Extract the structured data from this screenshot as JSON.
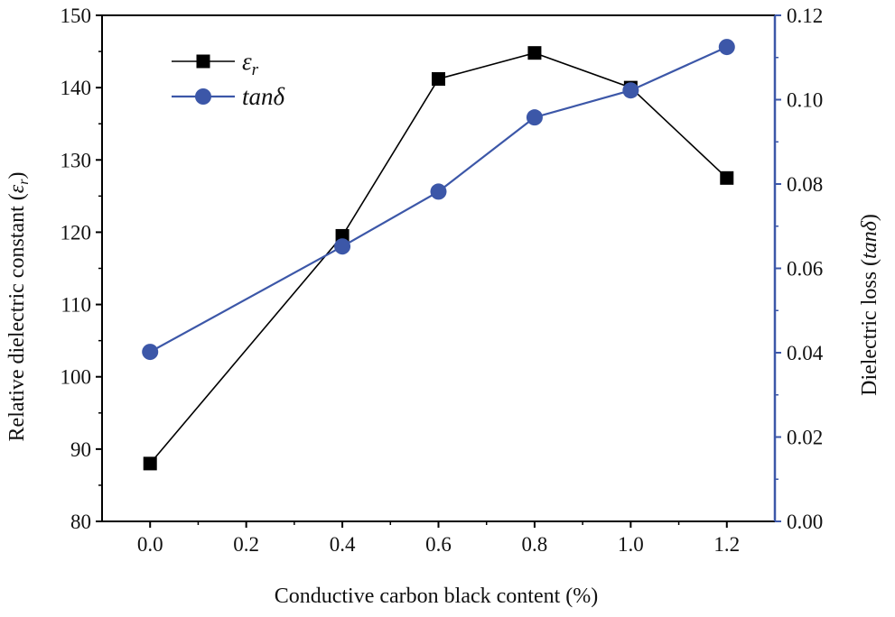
{
  "chart_data": {
    "type": "line",
    "title": "",
    "xlabel": "Conductive carbon black content (%)",
    "ylabel_left": {
      "text": "Relative dielectric constant (",
      "symbol": "ε",
      "sub": "r",
      "close": ")"
    },
    "ylabel_right": {
      "text": "Dielectric loss (",
      "symbol": "tanδ",
      "close": ")"
    },
    "x": [
      0.0,
      0.4,
      0.6,
      0.8,
      1.0,
      1.2
    ],
    "xlim": [
      -0.1,
      1.3
    ],
    "xticks": [
      0.0,
      0.2,
      0.4,
      0.6,
      0.8,
      1.0,
      1.2
    ],
    "xtick_labels": [
      "0.0",
      "0.2",
      "0.4",
      "0.6",
      "0.8",
      "1.0",
      "1.2"
    ],
    "ylim_left": [
      80,
      150
    ],
    "yticks_left": [
      80,
      90,
      100,
      110,
      120,
      130,
      140,
      150
    ],
    "ytick_labels_left": [
      "80",
      "90",
      "100",
      "110",
      "120",
      "130",
      "140",
      "150"
    ],
    "ylim_right": [
      0.0,
      0.12
    ],
    "yticks_right": [
      0.0,
      0.02,
      0.04,
      0.06,
      0.08,
      0.1,
      0.12
    ],
    "ytick_labels_right": [
      "0.00",
      "0.02",
      "0.04",
      "0.06",
      "0.08",
      "0.10",
      "0.12"
    ],
    "grid": false,
    "legend_position": "top-left",
    "series": [
      {
        "name": "εr",
        "legend_main": "ε",
        "legend_sub": "r",
        "axis": "left",
        "marker": "square",
        "color": "#000000",
        "values": [
          88.0,
          119.5,
          141.2,
          144.8,
          140.0,
          127.5
        ]
      },
      {
        "name": "tanδ",
        "legend_main": "tanδ",
        "legend_sub": "",
        "axis": "right",
        "marker": "circle",
        "color": "#3c57a8",
        "values": [
          0.0402,
          0.0652,
          0.0782,
          0.0958,
          0.1022,
          0.1125
        ]
      }
    ],
    "colors": {
      "left_axis": "#000000",
      "right_axis": "#3c57a8"
    }
  }
}
